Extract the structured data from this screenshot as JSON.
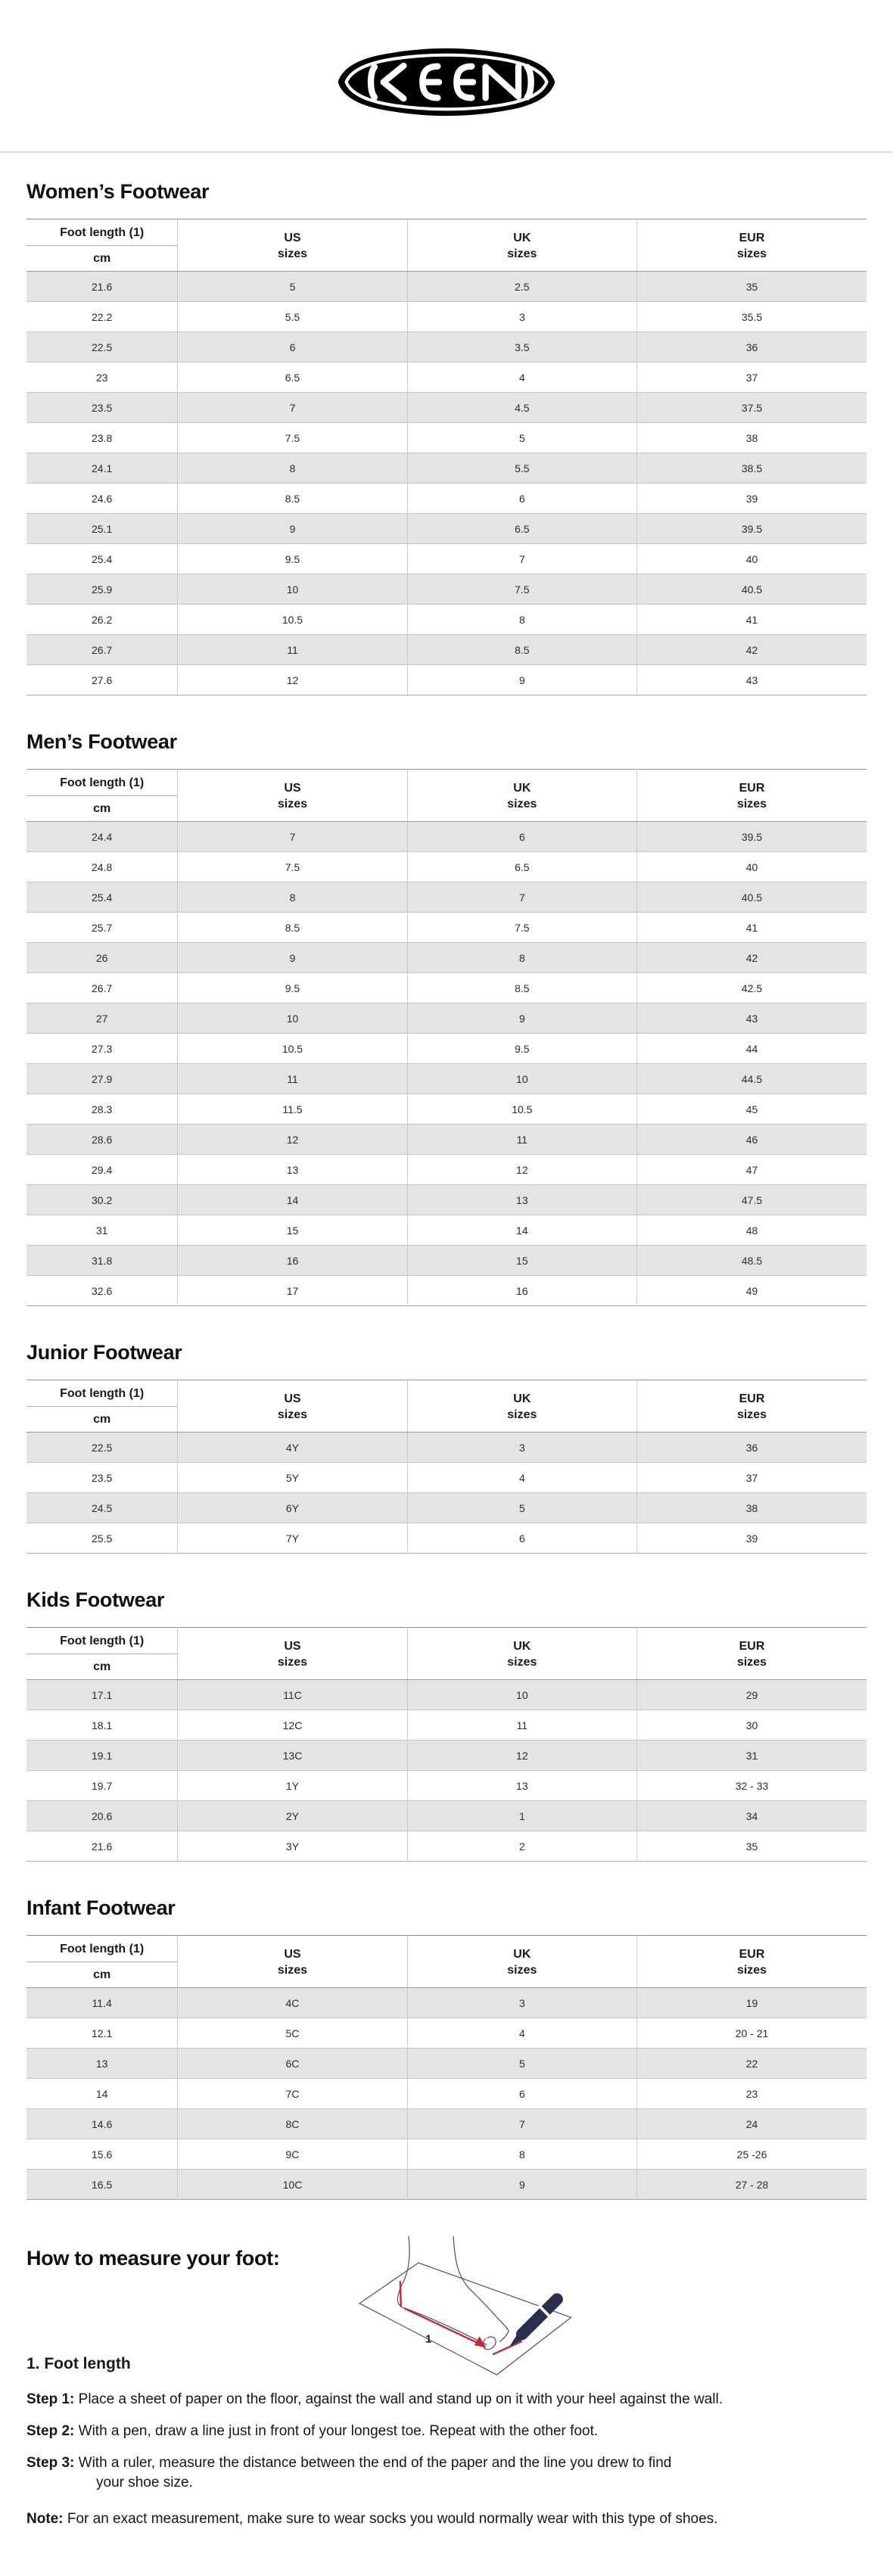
{
  "logo": {
    "brand": "KEEN"
  },
  "columns": {
    "foot_length": "Foot length (1)",
    "unit": "cm",
    "us": "US",
    "uk": "UK",
    "eur": "EUR",
    "sizes": "sizes"
  },
  "sections": [
    {
      "title": "Women’s Footwear",
      "rows": [
        [
          "21.6",
          "5",
          "2.5",
          "35"
        ],
        [
          "22.2",
          "5.5",
          "3",
          "35.5"
        ],
        [
          "22.5",
          "6",
          "3.5",
          "36"
        ],
        [
          "23",
          "6.5",
          "4",
          "37"
        ],
        [
          "23.5",
          "7",
          "4.5",
          "37.5"
        ],
        [
          "23.8",
          "7.5",
          "5",
          "38"
        ],
        [
          "24.1",
          "8",
          "5.5",
          "38.5"
        ],
        [
          "24.6",
          "8.5",
          "6",
          "39"
        ],
        [
          "25.1",
          "9",
          "6.5",
          "39.5"
        ],
        [
          "25.4",
          "9.5",
          "7",
          "40"
        ],
        [
          "25.9",
          "10",
          "7.5",
          "40.5"
        ],
        [
          "26.2",
          "10.5",
          "8",
          "41"
        ],
        [
          "26.7",
          "11",
          "8.5",
          "42"
        ],
        [
          "27.6",
          "12",
          "9",
          "43"
        ]
      ]
    },
    {
      "title": "Men’s Footwear",
      "rows": [
        [
          "24.4",
          "7",
          "6",
          "39.5"
        ],
        [
          "24.8",
          "7.5",
          "6.5",
          "40"
        ],
        [
          "25.4",
          "8",
          "7",
          "40.5"
        ],
        [
          "25.7",
          "8.5",
          "7.5",
          "41"
        ],
        [
          "26",
          "9",
          "8",
          "42"
        ],
        [
          "26.7",
          "9.5",
          "8.5",
          "42.5"
        ],
        [
          "27",
          "10",
          "9",
          "43"
        ],
        [
          "27.3",
          "10.5",
          "9.5",
          "44"
        ],
        [
          "27.9",
          "11",
          "10",
          "44.5"
        ],
        [
          "28.3",
          "11.5",
          "10.5",
          "45"
        ],
        [
          "28.6",
          "12",
          "11",
          "46"
        ],
        [
          "29.4",
          "13",
          "12",
          "47"
        ],
        [
          "30.2",
          "14",
          "13",
          "47.5"
        ],
        [
          "31",
          "15",
          "14",
          "48"
        ],
        [
          "31.8",
          "16",
          "15",
          "48.5"
        ],
        [
          "32.6",
          "17",
          "16",
          "49"
        ]
      ]
    },
    {
      "title": "Junior Footwear",
      "rows": [
        [
          "22.5",
          "4Y",
          "3",
          "36"
        ],
        [
          "23.5",
          "5Y",
          "4",
          "37"
        ],
        [
          "24.5",
          "6Y",
          "5",
          "38"
        ],
        [
          "25.5",
          "7Y",
          "6",
          "39"
        ]
      ]
    },
    {
      "title": "Kids Footwear",
      "rows": [
        [
          "17.1",
          "11C",
          "10",
          "29"
        ],
        [
          "18.1",
          "12C",
          "11",
          "30"
        ],
        [
          "19.1",
          "13C",
          "12",
          "31"
        ],
        [
          "19.7",
          "1Y",
          "13",
          "32 - 33"
        ],
        [
          "20.6",
          "2Y",
          "1",
          "34"
        ],
        [
          "21.6",
          "3Y",
          "2",
          "35"
        ]
      ]
    },
    {
      "title": "Infant Footwear",
      "rows": [
        [
          "11.4",
          "4C",
          "3",
          "19"
        ],
        [
          "12.1",
          "5C",
          "4",
          "20 - 21"
        ],
        [
          "13",
          "6C",
          "5",
          "22"
        ],
        [
          "14",
          "7C",
          "6",
          "23"
        ],
        [
          "14.6",
          "8C",
          "7",
          "24"
        ],
        [
          "15.6",
          "9C",
          "8",
          "25 -26"
        ],
        [
          "16.5",
          "10C",
          "9",
          "27 - 28"
        ]
      ]
    }
  ],
  "measure": {
    "heading": "How to measure your foot:",
    "sub": "1. Foot length",
    "diagram_label": "1",
    "steps": [
      {
        "label": "Step 1:",
        "text": "Place a sheet of paper on the floor, against the wall and stand up on it with your heel against the wall."
      },
      {
        "label": "Step 2:",
        "text": "With a pen, draw a line just in front of your longest toe. Repeat with the other foot."
      },
      {
        "label": "Step 3:",
        "text": "With a ruler, measure the distance between the end of the paper and the line you drew to find",
        "text2": "your shoe size."
      }
    ],
    "note": {
      "label": "Note:",
      "text": "For an exact measurement, make sure to wear socks you would normally wear with this type of shoes."
    }
  }
}
